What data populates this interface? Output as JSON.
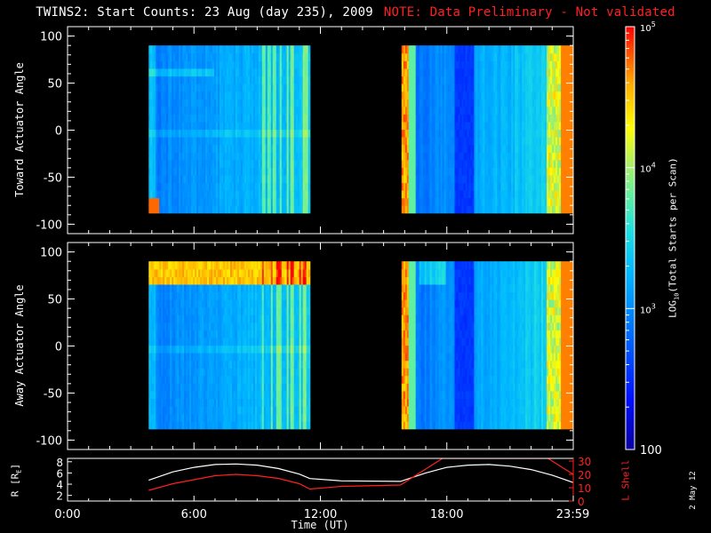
{
  "title": {
    "main": "TWINS2: Start Counts: 23 Aug (day 235), 2009",
    "note": "NOTE: Data Preliminary - Not validated",
    "note_color": "#ff2020"
  },
  "side_date": "2 May 12",
  "chart_data": [
    {
      "type": "heatmap",
      "panel": "toward",
      "ylabel": "Toward Actuator Angle",
      "ylim": [
        -110,
        110
      ],
      "yticks": [
        100,
        50,
        0,
        -50,
        -100
      ],
      "x_range_hours": [
        0,
        24
      ],
      "data_blocks_hours": [
        [
          3.85,
          11.5
        ],
        [
          15.85,
          24.0
        ]
      ],
      "angle_range": [
        -88,
        90
      ],
      "notes": "mostly 300-1000 counts; strong enhancement near -85 deg at 4h; bright edges near 16h and 23.5h"
    },
    {
      "type": "heatmap",
      "panel": "away",
      "ylabel": "Away Actuator Angle",
      "ylim": [
        -110,
        110
      ],
      "yticks": [
        100,
        50,
        0,
        -50,
        -100
      ],
      "x_range_hours": [
        0,
        24
      ],
      "data_blocks_hours": [
        [
          3.85,
          11.5
        ],
        [
          15.85,
          24.0
        ]
      ],
      "angle_range": [
        -88,
        90
      ],
      "notes": "high-count band near +80 deg during 4-11h; bright edges near 16h and 23.5h"
    },
    {
      "type": "line",
      "panel": "orbit",
      "ylabel_left": "R [R",
      "ylabel_left_sub": "E",
      "ylabel_left_end": "]",
      "ylabel_right": "L Shell",
      "left_ticks": [
        2,
        4,
        6,
        8
      ],
      "right_ticks": [
        0,
        10,
        20,
        30
      ],
      "xlabel": "Time (UT)",
      "xticks": [
        "0:00",
        "6:00",
        "12:00",
        "18:00",
        "23:59"
      ],
      "xtick_hours": [
        0,
        6,
        12,
        18,
        23.98
      ],
      "series": [
        {
          "name": "R",
          "color": "#ffffff",
          "x": [
            3.85,
            5,
            6,
            7,
            8,
            9,
            10,
            11,
            11.5,
            13,
            15.8,
            17,
            18,
            19,
            20,
            21,
            22,
            23,
            24
          ],
          "y": [
            4.7,
            6.2,
            7.0,
            7.5,
            7.6,
            7.4,
            6.8,
            5.8,
            5.0,
            4.6,
            4.5,
            6.0,
            7.0,
            7.4,
            7.5,
            7.2,
            6.6,
            5.6,
            4.3
          ]
        },
        {
          "name": "L Shell",
          "color": "#ff2020",
          "x": [
            3.85,
            5,
            6,
            7,
            8,
            9,
            10,
            11,
            11.5,
            13,
            15.8,
            17,
            17.8,
            22.8,
            24
          ],
          "y": [
            8,
            13,
            16,
            19,
            20,
            19,
            17,
            13,
            9,
            11,
            12,
            24,
            32,
            32,
            20
          ]
        }
      ]
    }
  ],
  "colorbar": {
    "label_pre": "LOG",
    "label_sub": "10",
    "label_post": "(Total Starts per Scan)",
    "ticks": [
      {
        "value": 100,
        "base": "100",
        "exp": ""
      },
      {
        "value": 1000,
        "base": "10",
        "exp": "3"
      },
      {
        "value": 10000,
        "base": "10",
        "exp": "4"
      },
      {
        "value": 100000,
        "base": "10",
        "exp": "5"
      }
    ],
    "range": [
      100,
      100000
    ]
  }
}
